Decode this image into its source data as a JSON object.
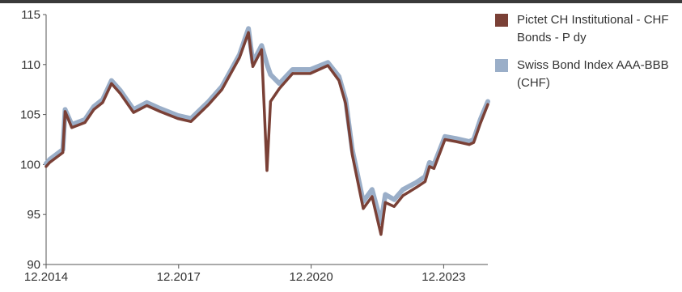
{
  "chart_data": {
    "type": "line",
    "title": "",
    "xlabel": "",
    "ylabel": "",
    "ylim": [
      90,
      115
    ],
    "yticks": [
      "90",
      "95",
      "100",
      "105",
      "110",
      "115"
    ],
    "xticks": [
      {
        "label": "12.2014",
        "x": 2014.92
      },
      {
        "label": "12.2017",
        "x": 2017.92
      },
      {
        "label": "12.2020",
        "x": 2020.92
      },
      {
        "label": "12.2023",
        "x": 2023.92
      }
    ],
    "xlim": [
      2014.92,
      2024.92
    ],
    "grid": false,
    "legend_position": "right",
    "series": [
      {
        "name": "Swiss Bond Index AAA-BBB (CHF)",
        "color": "#9aaec8",
        "x": [
          2014.92,
          2015.0,
          2015.3,
          2015.35,
          2015.5,
          2015.8,
          2016.0,
          2016.2,
          2016.4,
          2016.6,
          2016.9,
          2017.2,
          2017.5,
          2017.9,
          2018.2,
          2018.6,
          2018.9,
          2019.3,
          2019.5,
          2019.6,
          2019.8,
          2019.92,
          2020.0,
          2020.2,
          2020.5,
          2020.9,
          2021.3,
          2021.55,
          2021.7,
          2021.85,
          2022.1,
          2022.3,
          2022.5,
          2022.6,
          2022.8,
          2023.0,
          2023.3,
          2023.5,
          2023.6,
          2023.7,
          2023.95,
          2024.2,
          2024.5,
          2024.6,
          2024.75,
          2024.92
        ],
        "values": [
          100.1,
          100.5,
          101.5,
          105.5,
          104.0,
          104.5,
          105.8,
          106.5,
          108.4,
          107.4,
          105.5,
          106.2,
          105.6,
          104.9,
          104.6,
          106.3,
          107.8,
          111.0,
          113.6,
          110.2,
          111.9,
          110.0,
          109.0,
          108.1,
          109.5,
          109.5,
          110.2,
          108.8,
          106.5,
          101.5,
          96.3,
          97.5,
          94.2,
          97.0,
          96.5,
          97.5,
          98.2,
          98.8,
          100.2,
          100.0,
          102.8,
          102.6,
          102.3,
          102.5,
          104.5,
          106.3
        ]
      },
      {
        "name": "Pictet CH Institutional - CHF Bonds - P dy",
        "color": "#7a4036",
        "x": [
          2014.92,
          2015.0,
          2015.3,
          2015.35,
          2015.5,
          2015.8,
          2016.0,
          2016.2,
          2016.4,
          2016.6,
          2016.9,
          2017.2,
          2017.5,
          2017.9,
          2018.2,
          2018.6,
          2018.9,
          2019.3,
          2019.5,
          2019.6,
          2019.8,
          2019.92,
          2020.0,
          2020.2,
          2020.5,
          2020.9,
          2021.3,
          2021.55,
          2021.7,
          2021.85,
          2022.1,
          2022.3,
          2022.5,
          2022.6,
          2022.8,
          2023.0,
          2023.3,
          2023.5,
          2023.6,
          2023.7,
          2023.95,
          2024.2,
          2024.5,
          2024.6,
          2024.75,
          2024.92
        ],
        "values": [
          99.8,
          100.2,
          101.2,
          105.3,
          103.7,
          104.2,
          105.5,
          106.2,
          108.1,
          107.1,
          105.2,
          105.9,
          105.3,
          104.6,
          104.3,
          106.0,
          107.5,
          110.7,
          113.2,
          109.8,
          111.5,
          99.4,
          106.3,
          107.6,
          109.1,
          109.1,
          109.9,
          108.4,
          106.1,
          101.0,
          95.6,
          96.8,
          93.0,
          96.2,
          95.8,
          96.9,
          97.7,
          98.3,
          99.8,
          99.6,
          102.5,
          102.3,
          102.0,
          102.2,
          104.1,
          106.0
        ]
      }
    ]
  },
  "legend": {
    "items": [
      {
        "label": "Pictet CH Institutional - CHF Bonds - P dy",
        "color": "#7a4036"
      },
      {
        "label": "Swiss Bond Index AAA-BBB (CHF)",
        "color": "#9aaec8"
      }
    ]
  }
}
